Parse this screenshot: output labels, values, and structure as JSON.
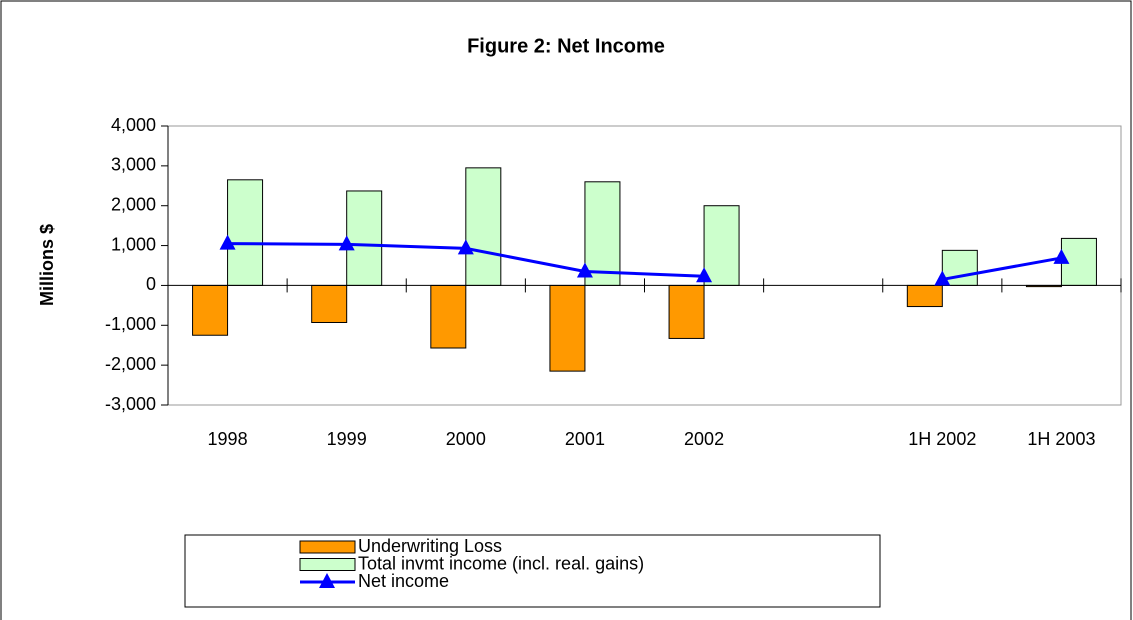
{
  "chart_data": {
    "type": "bar_line",
    "title": "Figure 2: Net Income",
    "y_label": "Millions $",
    "categories": [
      "1998",
      "1999",
      "2000",
      "2001",
      "2002",
      null,
      "1H 2002",
      "1H 2003"
    ],
    "series": [
      {
        "name": "Underwriting Loss",
        "type": "bar",
        "color": "#ff9900",
        "values": [
          -1250,
          -930,
          -1570,
          -2150,
          -1330,
          null,
          -530,
          -30
        ]
      },
      {
        "name": "Total invmt income (incl. real. gains)",
        "type": "bar",
        "color": "#ccffcc",
        "values": [
          2650,
          2370,
          2950,
          2600,
          2000,
          null,
          880,
          1180
        ]
      },
      {
        "name": "Net income",
        "type": "line",
        "color": "#0000ff",
        "values": [
          1050,
          1030,
          930,
          350,
          230,
          null,
          150,
          690
        ]
      }
    ],
    "ylim": [
      -3000,
      4000
    ],
    "yticks": [
      {
        "value": -3000,
        "label": "-3,000"
      },
      {
        "value": -2000,
        "label": "-2,000"
      },
      {
        "value": -1000,
        "label": "-1,000"
      },
      0,
      {
        "value": 1000,
        "label": "1,000"
      },
      {
        "value": 2000,
        "label": "2,000"
      },
      {
        "value": 3000,
        "label": "3,000"
      },
      {
        "value": 4000,
        "label": "4,000"
      }
    ],
    "legend": "bottom"
  }
}
